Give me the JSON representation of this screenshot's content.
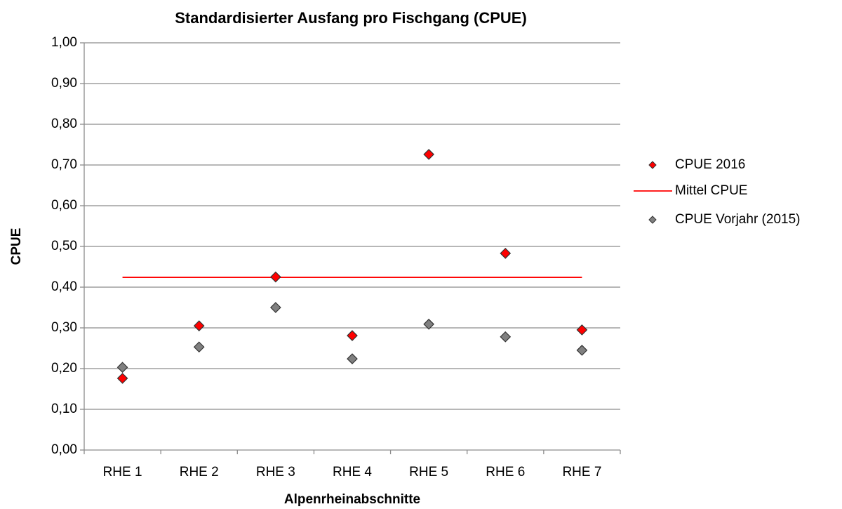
{
  "chart_data": {
    "type": "scatter",
    "title": "Standardisierter Ausfang pro Fischgang (CPUE)",
    "x_label": "Alpenrheinabschnitte",
    "y_label": "CPUE",
    "categories": [
      "RHE 1",
      "RHE 2",
      "RHE 3",
      "RHE 4",
      "RHE 5",
      "RHE 6",
      "RHE 7"
    ],
    "series": [
      {
        "name": "CPUE 2016",
        "color": "#ff0000",
        "style": "marker",
        "values": [
          0.176,
          0.305,
          0.425,
          0.281,
          0.726,
          0.483,
          0.295
        ]
      },
      {
        "name": "Mittel CPUE",
        "color": "#ff0000",
        "style": "line",
        "values": [
          0.424,
          0.424,
          0.424,
          0.424,
          0.424,
          0.424,
          0.424
        ]
      },
      {
        "name": "CPUE Vorjahr (2015)",
        "color": "#808080",
        "style": "marker",
        "values": [
          0.203,
          0.253,
          0.35,
          0.224,
          0.309,
          0.278,
          0.245
        ]
      }
    ],
    "ylim": [
      0,
      1
    ],
    "yticks": [
      {
        "value": 0,
        "label": "0,00"
      },
      {
        "value": 0.1,
        "label": "0,10"
      },
      {
        "value": 0.2,
        "label": "0,20"
      },
      {
        "value": 0.3,
        "label": "0,30"
      },
      {
        "value": 0.4,
        "label": "0,40"
      },
      {
        "value": 0.5,
        "label": "0,50"
      },
      {
        "value": 0.6,
        "label": "0,60"
      },
      {
        "value": 0.7,
        "label": "0,70"
      },
      {
        "value": 0.8,
        "label": "0,80"
      },
      {
        "value": 0.9,
        "label": "0,90"
      },
      {
        "value": 1,
        "label": "1,00"
      }
    ],
    "grid": true,
    "legend": "right"
  }
}
